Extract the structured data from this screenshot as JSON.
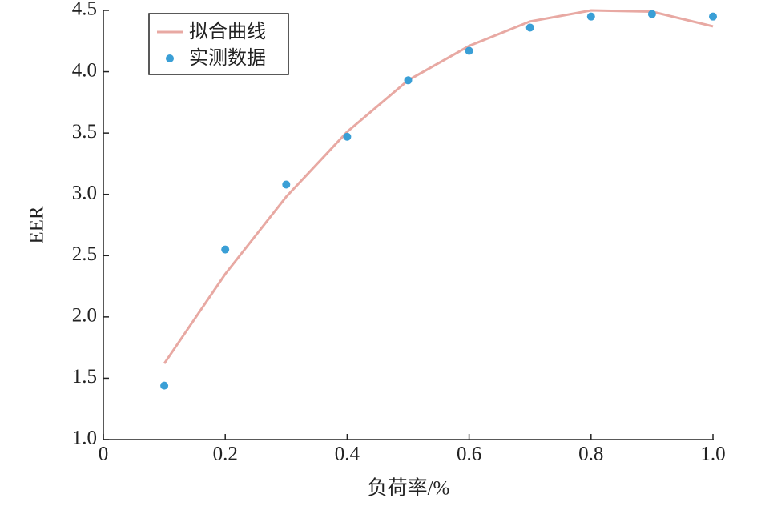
{
  "chart_data": {
    "type": "line",
    "x_label": "负荷率/%",
    "y_label": "EER",
    "x": [
      0.1,
      0.2,
      0.3,
      0.4,
      0.5,
      0.6,
      0.7,
      0.8,
      0.9,
      1.0
    ],
    "series": [
      {
        "name": "拟合曲线",
        "color": "#e8a9a3",
        "style": "line",
        "values": [
          1.62,
          2.35,
          2.98,
          3.51,
          3.93,
          4.21,
          4.41,
          4.5,
          4.49,
          4.37
        ]
      },
      {
        "name": "实测数据",
        "color": "#3a9fd6",
        "style": "markers",
        "values": [
          1.44,
          2.55,
          3.08,
          3.47,
          3.93,
          4.17,
          4.36,
          4.45,
          4.47,
          4.45
        ]
      }
    ],
    "xlim": [
      0,
      1
    ],
    "ylim": [
      1,
      4.5
    ],
    "xticks": [
      0,
      0.2,
      0.4,
      0.6,
      0.8,
      {
        "value": 1,
        "label": "1.0"
      }
    ],
    "yticks": [
      {
        "value": 1,
        "label": "1.0"
      },
      1.5,
      {
        "value": 2,
        "label": "2.0"
      },
      2.5,
      {
        "value": 3,
        "label": "3.0"
      },
      3.5,
      {
        "value": 4,
        "label": "4.0"
      },
      4.5
    ],
    "legend": "upper left"
  }
}
